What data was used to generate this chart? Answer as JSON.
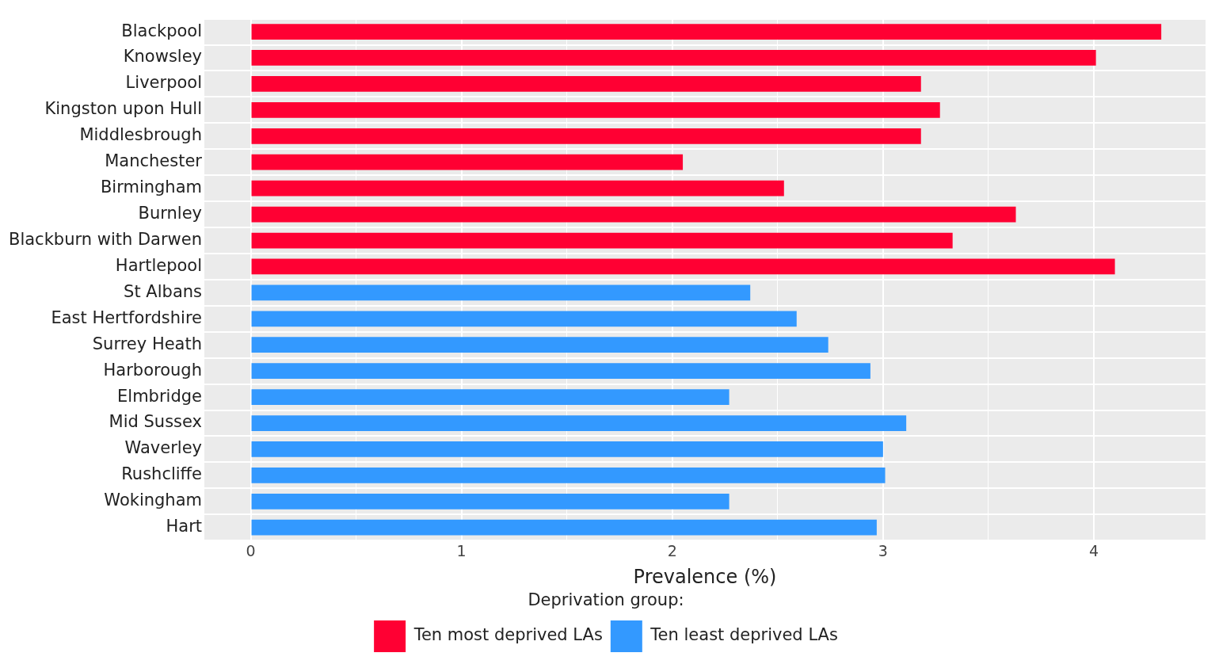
{
  "chart_data": {
    "type": "bar",
    "orientation": "horizontal",
    "stacked": true,
    "categories": [
      "Blackpool",
      "Knowsley",
      "Liverpool",
      "Kingston upon Hull",
      "Middlesbrough",
      "Manchester",
      "Birmingham",
      "Burnley",
      "Blackburn with Darwen",
      "Hartlepool",
      "St Albans",
      "East Hertfordshire",
      "Surrey Heath",
      "Harborough",
      "Elmbridge",
      "Mid Sussex",
      "Waverley",
      "Rushcliffe",
      "Wokingham",
      "Hart"
    ],
    "series": [
      {
        "name": "Ten most deprived LAs",
        "color": "#ff0033",
        "values": [
          4.32,
          4.01,
          3.18,
          3.27,
          3.18,
          2.05,
          2.53,
          3.63,
          3.33,
          4.1,
          null,
          null,
          null,
          null,
          null,
          null,
          null,
          null,
          null,
          null
        ]
      },
      {
        "name": "Ten least deprived LAs",
        "color": "#3399ff",
        "values": [
          null,
          null,
          null,
          null,
          null,
          null,
          null,
          null,
          null,
          null,
          2.37,
          2.59,
          2.74,
          2.94,
          2.27,
          3.11,
          3.0,
          3.01,
          2.27,
          2.97
        ]
      }
    ],
    "xlabel": "Prevalence (%)",
    "legend_title": "Deprivation group:",
    "xlim": [
      -0.22,
      4.53
    ],
    "xticks": [
      0,
      {
        "value": 0.5,
        "label": null
      },
      1,
      {
        "value": 1.5,
        "label": null
      },
      2,
      {
        "value": 2.5,
        "label": null
      },
      3,
      {
        "value": 3.5,
        "label": null
      },
      4
    ],
    "grid": true,
    "legend": "bottom"
  }
}
